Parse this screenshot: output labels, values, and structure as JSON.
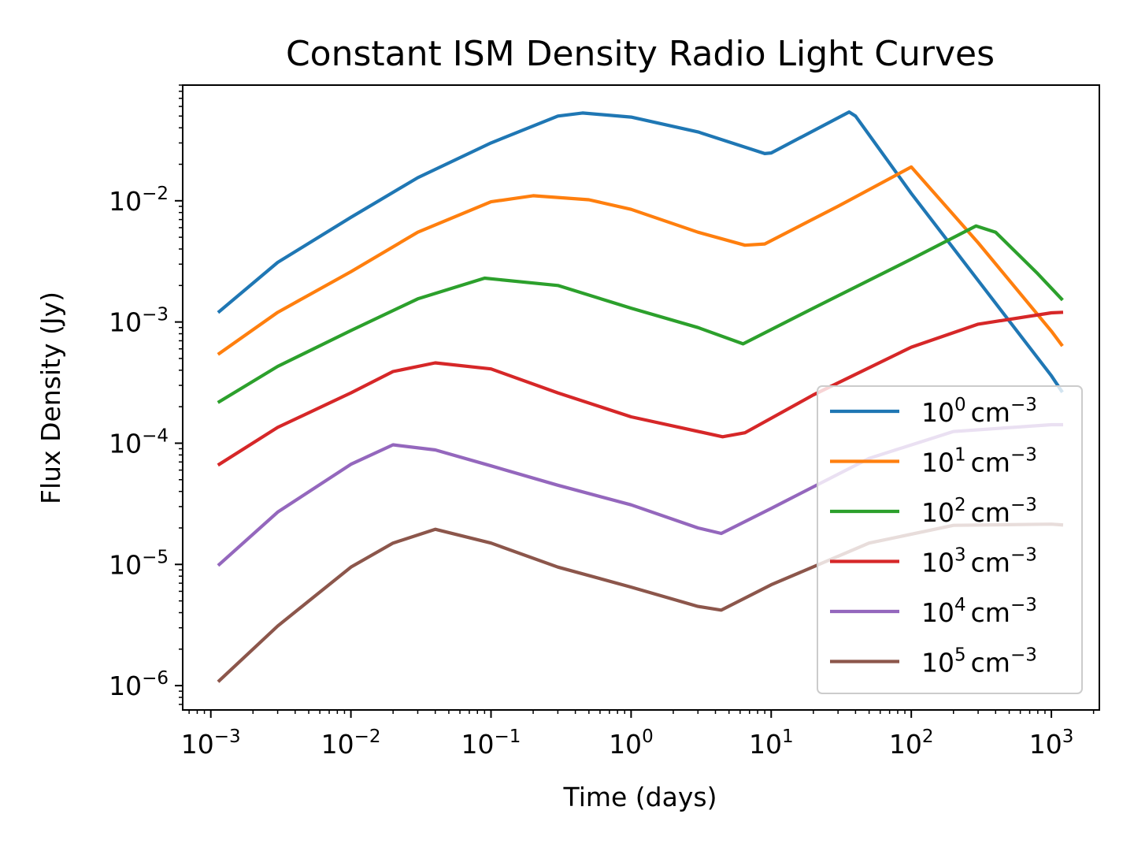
{
  "chart_data": {
    "type": "line",
    "title": "Constant ISM Density Radio Light Curves",
    "xlabel": "Time (days)",
    "ylabel": "Flux Density (Jy)",
    "xscale": "log",
    "yscale": "log",
    "xlim": [
      0.00063,
      2200
    ],
    "ylim": [
      6.3e-07,
      0.09
    ],
    "grid": false,
    "legend_position": "lower-right",
    "x_ticks": [
      {
        "base": "10",
        "exp": "−3",
        "value": 0.001
      },
      {
        "base": "10",
        "exp": "−2",
        "value": 0.01
      },
      {
        "base": "10",
        "exp": "−1",
        "value": 0.1
      },
      {
        "base": "10",
        "exp": "0",
        "value": 1
      },
      {
        "base": "10",
        "exp": "1",
        "value": 10
      },
      {
        "base": "10",
        "exp": "2",
        "value": 100
      },
      {
        "base": "10",
        "exp": "3",
        "value": 1000
      }
    ],
    "y_ticks": [
      {
        "base": "10",
        "exp": "−6",
        "value": 1e-06
      },
      {
        "base": "10",
        "exp": "−5",
        "value": 1e-05
      },
      {
        "base": "10",
        "exp": "−4",
        "value": 0.0001
      },
      {
        "base": "10",
        "exp": "−3",
        "value": 0.001
      },
      {
        "base": "10",
        "exp": "−2",
        "value": 0.01
      }
    ],
    "series": [
      {
        "name": "10^0 cm^-3",
        "label_base": "10",
        "label_exp": "0",
        "label_unit": "cm",
        "label_unit_exp": "−3",
        "color": "#1f77b4",
        "points": [
          [
            0.00115,
            0.00122
          ],
          [
            0.003,
            0.0031
          ],
          [
            0.01,
            0.0073
          ],
          [
            0.03,
            0.0155
          ],
          [
            0.1,
            0.03
          ],
          [
            0.3,
            0.05
          ],
          [
            0.45,
            0.053
          ],
          [
            1,
            0.049
          ],
          [
            3,
            0.037
          ],
          [
            9,
            0.0245
          ],
          [
            10,
            0.0248
          ],
          [
            36,
            0.054
          ],
          [
            40,
            0.05
          ],
          [
            50,
            0.035
          ],
          [
            100,
            0.0115
          ],
          [
            300,
            0.0022
          ],
          [
            1000,
            0.00036
          ],
          [
            1180,
            0.00027
          ]
        ]
      },
      {
        "name": "10^1 cm^-3",
        "label_base": "10",
        "label_exp": "1",
        "label_unit": "cm",
        "label_unit_exp": "−3",
        "color": "#ff7f0e",
        "points": [
          [
            0.00115,
            0.00055
          ],
          [
            0.003,
            0.0012
          ],
          [
            0.01,
            0.0026
          ],
          [
            0.03,
            0.0055
          ],
          [
            0.1,
            0.0098
          ],
          [
            0.2,
            0.011
          ],
          [
            0.5,
            0.0102
          ],
          [
            1,
            0.0085
          ],
          [
            3,
            0.0055
          ],
          [
            6.5,
            0.0043
          ],
          [
            9,
            0.0044
          ],
          [
            30,
            0.009
          ],
          [
            100,
            0.019
          ],
          [
            300,
            0.0045
          ],
          [
            1000,
            0.00084
          ],
          [
            1180,
            0.00065
          ]
        ]
      },
      {
        "name": "10^2 cm^-3",
        "label_base": "10",
        "label_exp": "2",
        "label_unit": "cm",
        "label_unit_exp": "−3",
        "color": "#2ca02c",
        "points": [
          [
            0.00115,
            0.00022
          ],
          [
            0.003,
            0.00043
          ],
          [
            0.01,
            0.00085
          ],
          [
            0.03,
            0.00155
          ],
          [
            0.09,
            0.0023
          ],
          [
            0.3,
            0.002
          ],
          [
            1,
            0.0013
          ],
          [
            3,
            0.0009
          ],
          [
            6.3,
            0.00066
          ],
          [
            20,
            0.0013
          ],
          [
            100,
            0.0033
          ],
          [
            290,
            0.0062
          ],
          [
            400,
            0.0055
          ],
          [
            800,
            0.0025
          ],
          [
            1180,
            0.00155
          ]
        ]
      },
      {
        "name": "10^3 cm^-3",
        "label_base": "10",
        "label_exp": "3",
        "label_unit": "cm",
        "label_unit_exp": "−3",
        "color": "#d62728",
        "points": [
          [
            0.00115,
            6.7e-05
          ],
          [
            0.003,
            0.000135
          ],
          [
            0.01,
            0.00026
          ],
          [
            0.02,
            0.00039
          ],
          [
            0.04,
            0.00046
          ],
          [
            0.1,
            0.00041
          ],
          [
            0.3,
            0.00026
          ],
          [
            1,
            0.000165
          ],
          [
            4.5,
            0.000113
          ],
          [
            6.5,
            0.000122
          ],
          [
            20,
            0.00025
          ],
          [
            100,
            0.00062
          ],
          [
            300,
            0.00096
          ],
          [
            1000,
            0.00119
          ],
          [
            1180,
            0.0012
          ]
        ]
      },
      {
        "name": "10^4 cm^-3",
        "label_base": "10",
        "label_exp": "4",
        "label_unit": "cm",
        "label_unit_exp": "−3",
        "color": "#9467bd",
        "points": [
          [
            0.00115,
            1e-05
          ],
          [
            0.003,
            2.7e-05
          ],
          [
            0.01,
            6.7e-05
          ],
          [
            0.02,
            9.7e-05
          ],
          [
            0.04,
            8.8e-05
          ],
          [
            0.1,
            6.5e-05
          ],
          [
            0.3,
            4.5e-05
          ],
          [
            1,
            3.1e-05
          ],
          [
            3,
            2e-05
          ],
          [
            4.4,
            1.8e-05
          ],
          [
            10,
            2.9e-05
          ],
          [
            50,
            7.5e-05
          ],
          [
            200,
            0.000125
          ],
          [
            1000,
            0.000142
          ],
          [
            1180,
            0.000142
          ]
        ]
      },
      {
        "name": "10^5 cm^-3",
        "label_base": "10",
        "label_exp": "5",
        "label_unit": "cm",
        "label_unit_exp": "−3",
        "color": "#8c564b",
        "points": [
          [
            0.00115,
            1.1e-06
          ],
          [
            0.003,
            3.1e-06
          ],
          [
            0.01,
            9.5e-06
          ],
          [
            0.02,
            1.5e-05
          ],
          [
            0.04,
            1.95e-05
          ],
          [
            0.1,
            1.5e-05
          ],
          [
            0.3,
            9.5e-06
          ],
          [
            1,
            6.5e-06
          ],
          [
            3,
            4.5e-06
          ],
          [
            4.4,
            4.2e-06
          ],
          [
            10,
            6.8e-06
          ],
          [
            50,
            1.5e-05
          ],
          [
            200,
            2.1e-05
          ],
          [
            1000,
            2.15e-05
          ],
          [
            1180,
            2.12e-05
          ]
        ]
      }
    ]
  }
}
